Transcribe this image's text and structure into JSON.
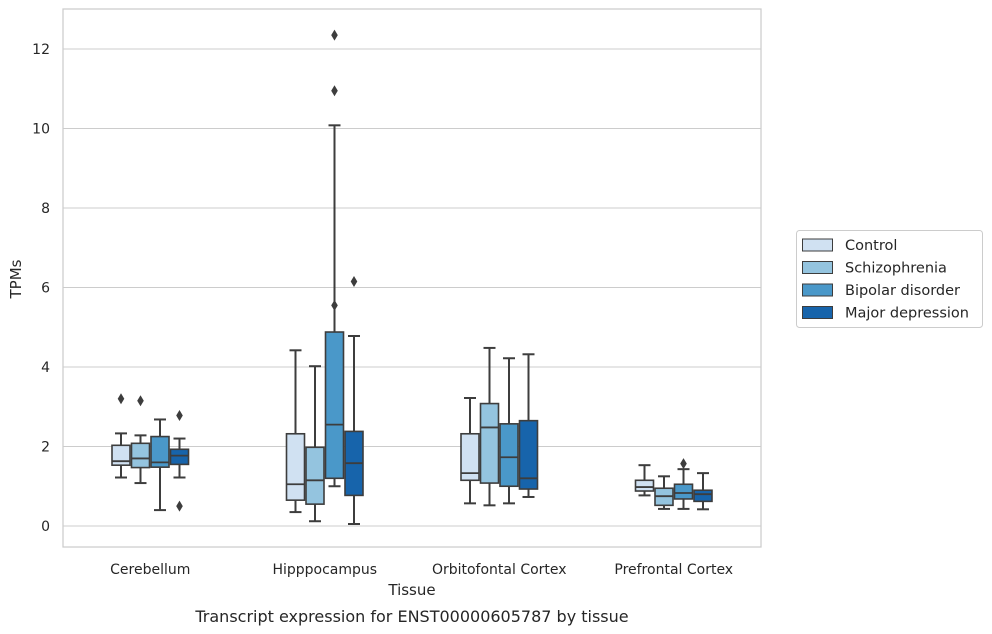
{
  "chart_data": {
    "type": "boxplot",
    "title": "Transcript expression for ENST00000605787 by tissue",
    "xlabel": "Tissue",
    "ylabel": "TPMs",
    "ylim": [
      -0.55,
      13
    ],
    "yticks": [
      0,
      2,
      4,
      6,
      8,
      10,
      12
    ],
    "grid": true,
    "legend_position": "right",
    "categories": [
      "Cerebellum",
      "Hipppocampus",
      "Orbitofontal Cortex",
      "Prefrontal Cortex"
    ],
    "series": [
      {
        "name": "Control",
        "color": "#d0e1f2",
        "boxes": [
          {
            "whislo": 1.22,
            "q1": 1.53,
            "med": 1.63,
            "q3": 2.03,
            "whishi": 2.33,
            "fliers": [
              3.2
            ]
          },
          {
            "whislo": 0.35,
            "q1": 0.65,
            "med": 1.05,
            "q3": 2.32,
            "whishi": 4.42,
            "fliers": []
          },
          {
            "whislo": 0.57,
            "q1": 1.15,
            "med": 1.33,
            "q3": 2.32,
            "whishi": 3.22,
            "fliers": []
          },
          {
            "whislo": 0.77,
            "q1": 0.88,
            "med": 0.98,
            "q3": 1.15,
            "whishi": 1.53,
            "fliers": []
          }
        ]
      },
      {
        "name": "Schizophrenia",
        "color": "#94c4df",
        "boxes": [
          {
            "whislo": 1.08,
            "q1": 1.47,
            "med": 1.7,
            "q3": 2.08,
            "whishi": 2.28,
            "fliers": [
              3.15
            ]
          },
          {
            "whislo": 0.12,
            "q1": 0.55,
            "med": 1.15,
            "q3": 1.98,
            "whishi": 4.02,
            "fliers": []
          },
          {
            "whislo": 0.52,
            "q1": 1.08,
            "med": 2.48,
            "q3": 3.08,
            "whishi": 4.48,
            "fliers": []
          },
          {
            "whislo": 0.43,
            "q1": 0.52,
            "med": 0.75,
            "q3": 0.95,
            "whishi": 1.25,
            "fliers": []
          }
        ]
      },
      {
        "name": "Bipolar disorder",
        "color": "#4a98c9",
        "boxes": [
          {
            "whislo": 0.4,
            "q1": 1.48,
            "med": 1.6,
            "q3": 2.25,
            "whishi": 2.68,
            "fliers": []
          },
          {
            "whislo": 1.0,
            "q1": 1.2,
            "med": 2.55,
            "q3": 4.88,
            "whishi": 10.08,
            "fliers": [
              5.55,
              10.95,
              12.35
            ]
          },
          {
            "whislo": 0.57,
            "q1": 1.0,
            "med": 1.73,
            "q3": 2.57,
            "whishi": 4.22,
            "fliers": []
          },
          {
            "whislo": 0.43,
            "q1": 0.68,
            "med": 0.83,
            "q3": 1.05,
            "whishi": 1.43,
            "fliers": [
              1.57
            ]
          }
        ]
      },
      {
        "name": "Major depression",
        "color": "#1764ab",
        "boxes": [
          {
            "whislo": 1.22,
            "q1": 1.55,
            "med": 1.77,
            "q3": 1.93,
            "whishi": 2.2,
            "fliers": [
              0.5,
              2.78
            ]
          },
          {
            "whislo": 0.05,
            "q1": 0.77,
            "med": 1.58,
            "q3": 2.38,
            "whishi": 4.78,
            "fliers": [
              6.15
            ]
          },
          {
            "whislo": 0.73,
            "q1": 0.93,
            "med": 1.2,
            "q3": 2.65,
            "whishi": 4.32,
            "fliers": []
          },
          {
            "whislo": 0.42,
            "q1": 0.62,
            "med": 0.8,
            "q3": 0.9,
            "whishi": 1.33,
            "fliers": []
          }
        ]
      }
    ]
  }
}
